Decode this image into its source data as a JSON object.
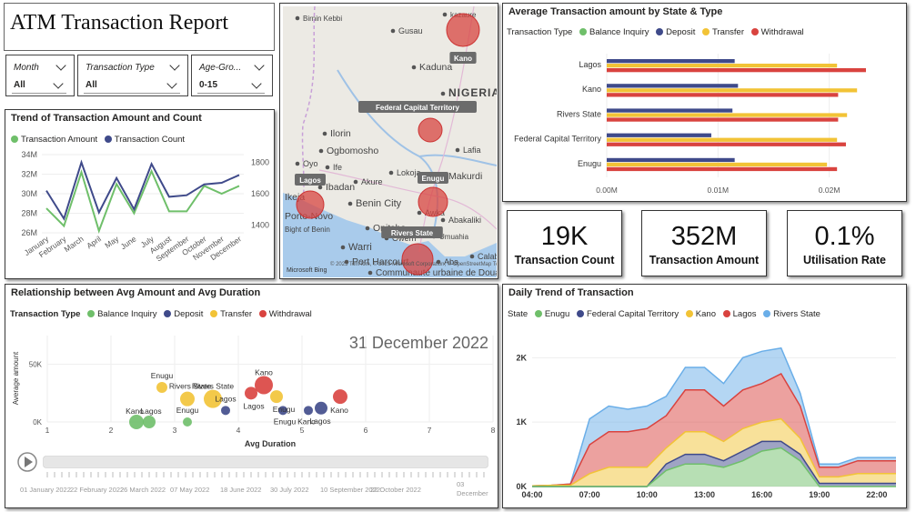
{
  "report": {
    "title": "ATM Transaction Report"
  },
  "slicers": [
    {
      "label": "Month",
      "value": "All"
    },
    {
      "label": "Transaction Type",
      "value": "All"
    },
    {
      "label": "Age-Gro...",
      "value": "0-15"
    }
  ],
  "trend": {
    "title": "Trend of Transaction Amount and  Count",
    "legend": [
      {
        "name": "Transaction Amount",
        "color": "#6fbf6a"
      },
      {
        "name": "Transaction Count",
        "color": "#3f4a8a"
      }
    ]
  },
  "map": {
    "places": [
      "Birnin Kebbi",
      "kazaure",
      "Gusau",
      "Kano",
      "Kaduna",
      "NIGERIA",
      "Federal Capital Territory",
      "Ilorin",
      "Abuja",
      "Lafia",
      "Ogbomosho",
      "Oyo",
      "Ife",
      "Akure",
      "Lokoja",
      "Makurdi",
      "Lagos",
      "Ibadan",
      "Ikeja",
      "Benin City",
      "Enugu",
      "Awka",
      "Porto-Novo",
      "Abakaliki",
      "Bight of Benin",
      "Onitsha",
      "Owerri",
      "Warri",
      "Rivers State",
      "Umuahia",
      "Port Harcourt",
      "Aba",
      "Calabar",
      "Communauté urbaine de Douala"
    ],
    "bubble_labels": [
      "Kano",
      "Federal Capital Territory",
      "Lagos",
      "Enugu",
      "Rivers State"
    ],
    "attribution": "Microsoft Bing",
    "copyright": "© 2023 TomTom, © 2023 Microsoft Corporation, © OpenStreetMap Terms"
  },
  "bar_chart": {
    "title": "Average Transaction amount by State & Type",
    "legend_title": "Transaction Type",
    "legend": [
      {
        "name": "Balance Inquiry",
        "color": "#6fbf6a"
      },
      {
        "name": "Deposit",
        "color": "#3f4a8a"
      },
      {
        "name": "Transfer",
        "color": "#f2c336"
      },
      {
        "name": "Withdrawal",
        "color": "#d9433f"
      }
    ],
    "x_ticks": [
      "0.00M",
      "0.01M",
      "0.02M"
    ]
  },
  "kpis": [
    {
      "value": "19K",
      "label": "Transaction Count"
    },
    {
      "value": "352M",
      "label": "Transaction Amount"
    },
    {
      "value": "0.1%",
      "label": "Utilisation Rate"
    }
  ],
  "scatter": {
    "title": "Relationship between Avg Amount and Avg Duration",
    "legend_title": "Transaction Type",
    "legend": [
      {
        "name": "Balance Inquiry",
        "color": "#6fbf6a"
      },
      {
        "name": "Deposit",
        "color": "#3f4a8a"
      },
      {
        "name": "Transfer",
        "color": "#f2c336"
      },
      {
        "name": "Withdrawal",
        "color": "#d9433f"
      }
    ],
    "date_display": "31 December 2022",
    "xlabel": "Avg Duration",
    "ylabel": "Average amount",
    "y_ticks": [
      "50K",
      "0K"
    ],
    "x_ticks": [
      "1",
      "2",
      "3",
      "4",
      "5",
      "6",
      "7",
      "8"
    ],
    "timeline_labels": [
      "01 January 2022",
      "22 February 2022",
      "26 March 2022",
      "07 May 2022",
      "18 June 2022",
      "30 July 2022",
      "10 September 2022",
      "22 October 2022",
      "03 December"
    ]
  },
  "daily": {
    "title": "Daily Trend of Transaction",
    "legend_title": "State",
    "legend": [
      {
        "name": "Enugu",
        "color": "#6fbf6a"
      },
      {
        "name": "Federal Capital Territory",
        "color": "#3f4a8a"
      },
      {
        "name": "Kano",
        "color": "#f2c336"
      },
      {
        "name": "Lagos",
        "color": "#d9433f"
      },
      {
        "name": "Rivers State",
        "color": "#6aaee8"
      }
    ],
    "y_ticks": [
      "2K",
      "1K",
      "0K"
    ],
    "x_ticks": [
      "04:00",
      "07:00",
      "10:00",
      "13:00",
      "16:00",
      "19:00",
      "22:00"
    ]
  },
  "chart_data": [
    {
      "type": "line",
      "title": "Trend of Transaction Amount and  Count",
      "categories": [
        "January",
        "February",
        "March",
        "April",
        "May",
        "June",
        "July",
        "August",
        "September",
        "October",
        "November",
        "December"
      ],
      "series": [
        {
          "name": "Transaction Amount",
          "axis": "left",
          "values": [
            28.5,
            26.7,
            32.2,
            26.2,
            31.0,
            28.0,
            32.3,
            28.2,
            28.2,
            30.8,
            30.0,
            30.8
          ]
        },
        {
          "name": "Transaction Count",
          "axis": "right",
          "values": [
            1620,
            1440,
            1800,
            1480,
            1700,
            1500,
            1790,
            1580,
            1590,
            1660,
            1670,
            1720
          ]
        }
      ],
      "y_left_ticks": [
        "26M",
        "28M",
        "30M",
        "32M",
        "34M"
      ],
      "y_left_range": [
        26,
        34
      ],
      "y_right_ticks": [
        "1400",
        "1600",
        "1800"
      ],
      "y_right_range": [
        1350,
        1850
      ]
    },
    {
      "type": "bar",
      "orientation": "horizontal",
      "title": "Average Transaction amount by State & Type",
      "categories": [
        "Lagos",
        "Kano",
        "Rivers State",
        "Federal Capital Territory",
        "Enugu"
      ],
      "series": [
        {
          "name": "Balance Inquiry",
          "values": [
            0,
            0,
            0,
            0,
            0
          ]
        },
        {
          "name": "Deposit",
          "values": [
            0.0115,
            0.0118,
            0.0113,
            0.0094,
            0.0115
          ]
        },
        {
          "name": "Transfer",
          "values": [
            0.0207,
            0.0225,
            0.0216,
            0.0207,
            0.0198
          ]
        },
        {
          "name": "Withdrawal",
          "values": [
            0.0233,
            0.0208,
            0.0208,
            0.0215,
            0.0207
          ]
        }
      ],
      "xlim": [
        0,
        0.026
      ],
      "x_unit": "M"
    },
    {
      "type": "scatter",
      "title": "Relationship between Avg Amount and Avg Duration",
      "xlim": [
        1,
        8
      ],
      "ylim": [
        0,
        75
      ],
      "y_unit": "K",
      "points": [
        {
          "label": "Kano",
          "type": "Balance Inquiry",
          "x": 2.4,
          "y": 0,
          "size": 8
        },
        {
          "label": "Lagos",
          "type": "Balance Inquiry",
          "x": 2.6,
          "y": 0,
          "size": 7
        },
        {
          "label": "Enugu",
          "type": "Transfer",
          "x": 2.8,
          "y": 30,
          "size": 6
        },
        {
          "label": "Rivers State",
          "type": "Transfer",
          "x": 3.2,
          "y": 20,
          "size": 8
        },
        {
          "label": "Rivers State",
          "type": "Transfer",
          "x": 3.6,
          "y": 20,
          "size": 10
        },
        {
          "label": "Enugu",
          "type": "Balance Inquiry",
          "x": 3.2,
          "y": 0,
          "size": 5
        },
        {
          "label": "Lagos",
          "type": "Deposit",
          "x": 3.8,
          "y": 10,
          "size": 5
        },
        {
          "label": "Kano",
          "type": "Withdrawal",
          "x": 4.4,
          "y": 32,
          "size": 10
        },
        {
          "label": "Enugu",
          "type": "Transfer",
          "x": 4.6,
          "y": 22,
          "size": 7
        },
        {
          "label": "Lagos",
          "type": "Withdrawal",
          "x": 4.2,
          "y": 25,
          "size": 7
        },
        {
          "label": "Enugu",
          "type": "Deposit",
          "x": 4.7,
          "y": 10,
          "size": 5
        },
        {
          "label": "Kano",
          "type": "Deposit",
          "x": 5.1,
          "y": 10,
          "size": 5
        },
        {
          "label": "Lagos",
          "type": "Deposit",
          "x": 5.3,
          "y": 12,
          "size": 7
        },
        {
          "label": "Kano",
          "type": "Withdrawal",
          "x": 5.6,
          "y": 22,
          "size": 8
        }
      ]
    },
    {
      "type": "area",
      "title": "Daily Trend of Transaction",
      "x": [
        "04:00",
        "05:00",
        "06:00",
        "07:00",
        "08:00",
        "09:00",
        "10:00",
        "11:00",
        "12:00",
        "13:00",
        "14:00",
        "15:00",
        "16:00",
        "17:00",
        "18:00",
        "19:00",
        "20:00",
        "21:00",
        "22:00",
        "23:00"
      ],
      "ylim": [
        0,
        2400
      ],
      "series": [
        {
          "name": "Enugu",
          "values": [
            0,
            0,
            0,
            0,
            0,
            0,
            0,
            250,
            350,
            350,
            300,
            400,
            550,
            600,
            400,
            0,
            0,
            0,
            0,
            0
          ]
        },
        {
          "name": "Federal Capital Territory",
          "values": [
            0,
            0,
            0,
            0,
            0,
            0,
            0,
            100,
            150,
            150,
            100,
            150,
            150,
            100,
            100,
            50,
            50,
            50,
            50,
            50
          ]
        },
        {
          "name": "Kano",
          "values": [
            10,
            20,
            20,
            200,
            300,
            300,
            300,
            250,
            350,
            350,
            300,
            350,
            300,
            350,
            250,
            100,
            100,
            150,
            150,
            150
          ]
        },
        {
          "name": "Lagos",
          "values": [
            0,
            0,
            20,
            450,
            550,
            550,
            600,
            500,
            650,
            650,
            550,
            600,
            600,
            700,
            500,
            150,
            150,
            200,
            200,
            200
          ]
        },
        {
          "name": "Rivers State",
          "values": [
            0,
            0,
            0,
            400,
            400,
            350,
            350,
            300,
            350,
            350,
            350,
            500,
            500,
            400,
            200,
            50,
            50,
            50,
            50,
            50
          ]
        }
      ]
    }
  ]
}
